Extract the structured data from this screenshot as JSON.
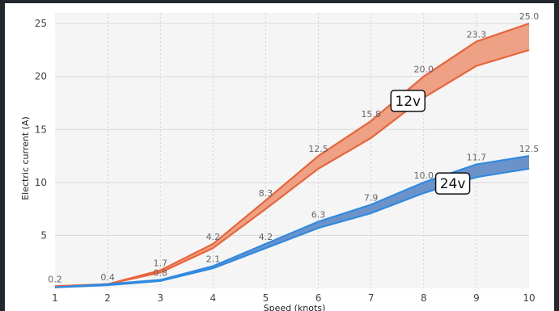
{
  "chart_data": {
    "type": "area",
    "xlabel": "Speed (knots)",
    "ylabel": "Electric current (A)",
    "x": [
      1,
      2,
      3,
      4,
      5,
      6,
      7,
      8,
      9,
      10
    ],
    "xlim": [
      1,
      10
    ],
    "ylim": [
      0,
      26
    ],
    "yticks": [
      5,
      10,
      15,
      20,
      25
    ],
    "grid": true,
    "series": [
      {
        "name": "12v",
        "color": "#e8653a",
        "fill": "#eea184",
        "upper": [
          0.2,
          0.4,
          1.7,
          4.2,
          8.3,
          12.5,
          15.8,
          20.0,
          23.3,
          25.0
        ],
        "lower": [
          0.2,
          0.4,
          1.5,
          3.8,
          7.5,
          11.3,
          14.2,
          18.0,
          21.0,
          22.5
        ],
        "labels": [
          "0.2",
          "0.4",
          "1.7",
          "4.2",
          "8.3",
          "12.5",
          "15.8",
          "20.0",
          "23.3",
          "25.0"
        ]
      },
      {
        "name": "24v",
        "color": "#2f8ae0",
        "fill": "#6c93c9",
        "upper": [
          0.1,
          0.4,
          0.8,
          2.1,
          4.2,
          6.3,
          7.9,
          10.0,
          11.7,
          12.5
        ],
        "lower": [
          0.1,
          0.3,
          0.7,
          1.9,
          3.8,
          5.7,
          7.1,
          9.0,
          10.5,
          11.3
        ],
        "labels": [
          "",
          "",
          "0.8",
          "2.1",
          "4.2",
          "6.3",
          "7.9",
          "10.0",
          "11.7",
          "12.5"
        ]
      }
    ]
  }
}
